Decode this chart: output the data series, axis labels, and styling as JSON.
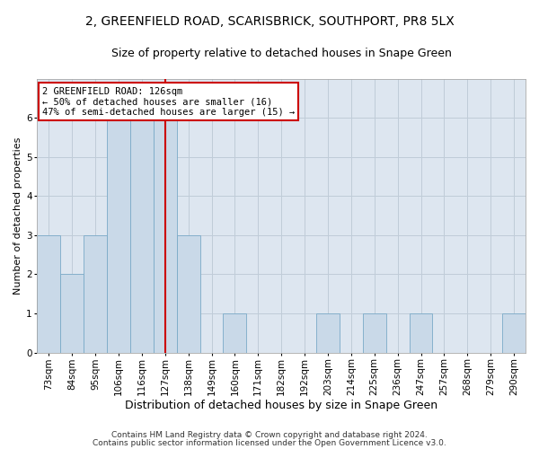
{
  "title_line1": "2, GREENFIELD ROAD, SCARISBRICK, SOUTHPORT, PR8 5LX",
  "title_line2": "Size of property relative to detached houses in Snape Green",
  "xlabel": "Distribution of detached houses by size in Snape Green",
  "ylabel": "Number of detached properties",
  "categories": [
    "73sqm",
    "84sqm",
    "95sqm",
    "106sqm",
    "116sqm",
    "127sqm",
    "138sqm",
    "149sqm",
    "160sqm",
    "171sqm",
    "182sqm",
    "192sqm",
    "203sqm",
    "214sqm",
    "225sqm",
    "236sqm",
    "247sqm",
    "257sqm",
    "268sqm",
    "279sqm",
    "290sqm"
  ],
  "values": [
    3,
    2,
    3,
    6,
    6,
    6,
    3,
    0,
    1,
    0,
    0,
    0,
    1,
    0,
    1,
    0,
    1,
    0,
    0,
    0,
    1
  ],
  "highlight_index": 5,
  "bar_color": "#c9d9e8",
  "bar_edge_color": "#7aaac8",
  "highlight_line_color": "#cc0000",
  "annotation_line1": "2 GREENFIELD ROAD: 126sqm",
  "annotation_line2": "← 50% of detached houses are smaller (16)",
  "annotation_line3": "47% of semi-detached houses are larger (15) →",
  "annotation_box_color": "#cc0000",
  "ylim": [
    0,
    7
  ],
  "yticks": [
    0,
    1,
    2,
    3,
    4,
    5,
    6
  ],
  "footer_line1": "Contains HM Land Registry data © Crown copyright and database right 2024.",
  "footer_line2": "Contains public sector information licensed under the Open Government Licence v3.0.",
  "bg_color": "#ffffff",
  "plot_bg_color": "#dde6f0",
  "grid_color": "#c0ccd8",
  "title1_fontsize": 10,
  "title2_fontsize": 9,
  "xlabel_fontsize": 9,
  "ylabel_fontsize": 8,
  "tick_fontsize": 7.5,
  "annot_fontsize": 7.5,
  "footer_fontsize": 6.5
}
